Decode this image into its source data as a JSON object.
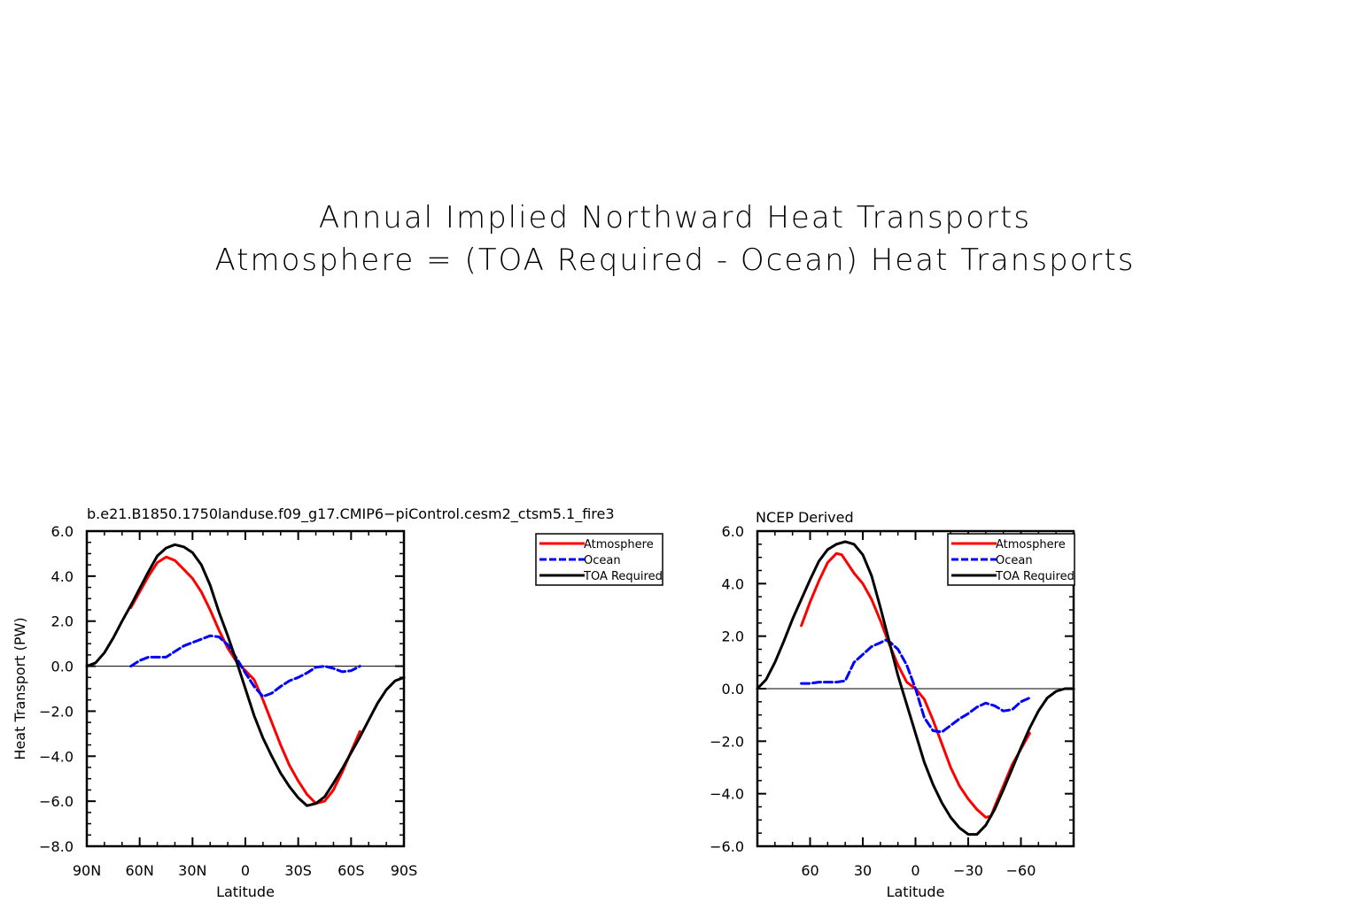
{
  "page": {
    "title_line1": "Annual Implied Northward Heat Transports",
    "title_line2": "Atmosphere = (TOA Required - Ocean) Heat Transports"
  },
  "chart_data": [
    {
      "type": "line",
      "title": "b.e21.B1850.1750landuse.f09_g17.CMIP6-piControl.cesm2_ctsm5.1_fire3",
      "xlabel": "Latitude",
      "ylabel": "Heat Transport (PW)",
      "xlim": [
        90,
        -90
      ],
      "ylim": [
        -8,
        6
      ],
      "x_ticks": [
        90,
        60,
        30,
        0,
        -30,
        -60,
        -90
      ],
      "x_tick_labels": [
        "90N",
        "60N",
        "30N",
        "0",
        "30S",
        "60S",
        "90S"
      ],
      "y_ticks": [
        6,
        4,
        2,
        0,
        -2,
        -4,
        -6,
        -8
      ],
      "y_tick_labels": [
        "6.0",
        "4.0",
        "2.0",
        "0.0",
        "-2.0",
        "-4.0",
        "-6.0",
        "-8.0"
      ],
      "zero_line": true,
      "legend_position": "right-outside-top",
      "series": [
        {
          "name": "Atmosphere",
          "color": "#ff0000",
          "dash": "solid",
          "points": [
            [
              65,
              2.6
            ],
            [
              60,
              3.3
            ],
            [
              55,
              4.0
            ],
            [
              50,
              4.6
            ],
            [
              45,
              4.85
            ],
            [
              40,
              4.7
            ],
            [
              35,
              4.3
            ],
            [
              30,
              3.9
            ],
            [
              25,
              3.3
            ],
            [
              20,
              2.5
            ],
            [
              15,
              1.6
            ],
            [
              10,
              0.8
            ],
            [
              5,
              0.2
            ],
            [
              0,
              -0.2
            ],
            [
              -5,
              -0.6
            ],
            [
              -10,
              -1.5
            ],
            [
              -15,
              -2.5
            ],
            [
              -20,
              -3.5
            ],
            [
              -25,
              -4.4
            ],
            [
              -30,
              -5.1
            ],
            [
              -35,
              -5.7
            ],
            [
              -40,
              -6.1
            ],
            [
              -45,
              -6.0
            ],
            [
              -50,
              -5.5
            ],
            [
              -55,
              -4.7
            ],
            [
              -60,
              -3.8
            ],
            [
              -65,
              -2.9
            ]
          ]
        },
        {
          "name": "Ocean",
          "color": "#0000ff",
          "dash": "dashed",
          "points": [
            [
              65,
              0.0
            ],
            [
              60,
              0.25
            ],
            [
              55,
              0.4
            ],
            [
              50,
              0.4
            ],
            [
              45,
              0.4
            ],
            [
              40,
              0.65
            ],
            [
              35,
              0.9
            ],
            [
              30,
              1.05
            ],
            [
              25,
              1.2
            ],
            [
              20,
              1.35
            ],
            [
              15,
              1.3
            ],
            [
              10,
              0.95
            ],
            [
              5,
              0.35
            ],
            [
              0,
              -0.3
            ],
            [
              -5,
              -0.9
            ],
            [
              -10,
              -1.35
            ],
            [
              -15,
              -1.2
            ],
            [
              -20,
              -0.9
            ],
            [
              -25,
              -0.65
            ],
            [
              -30,
              -0.5
            ],
            [
              -35,
              -0.3
            ],
            [
              -40,
              -0.05
            ],
            [
              -45,
              0.0
            ],
            [
              -50,
              -0.1
            ],
            [
              -55,
              -0.25
            ],
            [
              -60,
              -0.2
            ],
            [
              -65,
              0.0
            ]
          ]
        },
        {
          "name": "TOA Required",
          "color": "#000000",
          "dash": "solid",
          "points": [
            [
              90,
              0.0
            ],
            [
              85,
              0.15
            ],
            [
              80,
              0.6
            ],
            [
              75,
              1.25
            ],
            [
              70,
              2.0
            ],
            [
              65,
              2.7
            ],
            [
              60,
              3.45
            ],
            [
              55,
              4.2
            ],
            [
              50,
              4.9
            ],
            [
              45,
              5.25
            ],
            [
              40,
              5.4
            ],
            [
              35,
              5.3
            ],
            [
              30,
              5.05
            ],
            [
              25,
              4.5
            ],
            [
              20,
              3.6
            ],
            [
              15,
              2.4
            ],
            [
              10,
              1.35
            ],
            [
              5,
              0.2
            ],
            [
              0,
              -1.0
            ],
            [
              -5,
              -2.2
            ],
            [
              -10,
              -3.2
            ],
            [
              -15,
              -4.0
            ],
            [
              -20,
              -4.75
            ],
            [
              -25,
              -5.35
            ],
            [
              -30,
              -5.85
            ],
            [
              -35,
              -6.2
            ],
            [
              -40,
              -6.1
            ],
            [
              -45,
              -5.8
            ],
            [
              -50,
              -5.2
            ],
            [
              -55,
              -4.55
            ],
            [
              -60,
              -3.85
            ],
            [
              -65,
              -3.15
            ],
            [
              -70,
              -2.4
            ],
            [
              -75,
              -1.65
            ],
            [
              -80,
              -1.05
            ],
            [
              -85,
              -0.65
            ],
            [
              -90,
              -0.5
            ]
          ]
        }
      ]
    },
    {
      "type": "line",
      "title": "NCEP Derived",
      "xlabel": "Latitude",
      "ylabel": "",
      "xlim": [
        90,
        -90
      ],
      "ylim": [
        -6,
        6
      ],
      "x_ticks": [
        60,
        30,
        0,
        -30,
        -60
      ],
      "x_tick_labels": [
        "60",
        "30",
        "0",
        "-30",
        "-60"
      ],
      "y_ticks": [
        6,
        4,
        2,
        0,
        -2,
        -4,
        -6
      ],
      "y_tick_labels": [
        "6.0",
        "4.0",
        "2.0",
        "0.0",
        "-2.0",
        "-4.0",
        "-6.0"
      ],
      "zero_line": true,
      "legend_position": "top-right-inside",
      "series": [
        {
          "name": "Atmosphere",
          "color": "#ff0000",
          "dash": "solid",
          "points": [
            [
              65,
              2.4
            ],
            [
              60,
              3.3
            ],
            [
              55,
              4.1
            ],
            [
              50,
              4.8
            ],
            [
              45,
              5.15
            ],
            [
              42,
              5.1
            ],
            [
              40,
              4.9
            ],
            [
              35,
              4.4
            ],
            [
              30,
              4.0
            ],
            [
              25,
              3.4
            ],
            [
              20,
              2.6
            ],
            [
              15,
              1.7
            ],
            [
              10,
              0.9
            ],
            [
              5,
              0.25
            ],
            [
              0,
              0.0
            ],
            [
              -5,
              -0.4
            ],
            [
              -10,
              -1.2
            ],
            [
              -15,
              -2.1
            ],
            [
              -20,
              -3.0
            ],
            [
              -25,
              -3.7
            ],
            [
              -30,
              -4.2
            ],
            [
              -35,
              -4.6
            ],
            [
              -40,
              -4.9
            ],
            [
              -43,
              -4.85
            ],
            [
              -45,
              -4.5
            ],
            [
              -50,
              -3.7
            ],
            [
              -55,
              -2.9
            ],
            [
              -60,
              -2.3
            ],
            [
              -65,
              -1.7
            ]
          ]
        },
        {
          "name": "Ocean",
          "color": "#0000ff",
          "dash": "dashed",
          "points": [
            [
              65,
              0.2
            ],
            [
              60,
              0.2
            ],
            [
              55,
              0.25
            ],
            [
              50,
              0.25
            ],
            [
              45,
              0.25
            ],
            [
              40,
              0.3
            ],
            [
              35,
              1.0
            ],
            [
              30,
              1.3
            ],
            [
              25,
              1.6
            ],
            [
              20,
              1.75
            ],
            [
              17,
              1.85
            ],
            [
              15,
              1.8
            ],
            [
              10,
              1.5
            ],
            [
              5,
              0.9
            ],
            [
              0,
              0.0
            ],
            [
              -5,
              -1.1
            ],
            [
              -10,
              -1.6
            ],
            [
              -15,
              -1.65
            ],
            [
              -20,
              -1.4
            ],
            [
              -25,
              -1.15
            ],
            [
              -30,
              -0.95
            ],
            [
              -35,
              -0.7
            ],
            [
              -40,
              -0.55
            ],
            [
              -45,
              -0.65
            ],
            [
              -50,
              -0.85
            ],
            [
              -55,
              -0.8
            ],
            [
              -60,
              -0.5
            ],
            [
              -65,
              -0.35
            ]
          ]
        },
        {
          "name": "TOA Required",
          "color": "#000000",
          "dash": "solid",
          "points": [
            [
              90,
              0.0
            ],
            [
              85,
              0.35
            ],
            [
              80,
              1.0
            ],
            [
              75,
              1.8
            ],
            [
              70,
              2.65
            ],
            [
              65,
              3.4
            ],
            [
              60,
              4.15
            ],
            [
              55,
              4.85
            ],
            [
              50,
              5.3
            ],
            [
              45,
              5.5
            ],
            [
              40,
              5.6
            ],
            [
              35,
              5.5
            ],
            [
              30,
              5.1
            ],
            [
              25,
              4.3
            ],
            [
              20,
              3.1
            ],
            [
              15,
              1.8
            ],
            [
              10,
              0.5
            ],
            [
              5,
              -0.6
            ],
            [
              0,
              -1.7
            ],
            [
              -5,
              -2.8
            ],
            [
              -10,
              -3.65
            ],
            [
              -15,
              -4.35
            ],
            [
              -20,
              -4.9
            ],
            [
              -25,
              -5.3
            ],
            [
              -30,
              -5.55
            ],
            [
              -35,
              -5.55
            ],
            [
              -40,
              -5.2
            ],
            [
              -45,
              -4.6
            ],
            [
              -50,
              -3.85
            ],
            [
              -55,
              -3.05
            ],
            [
              -60,
              -2.25
            ],
            [
              -65,
              -1.5
            ],
            [
              -70,
              -0.85
            ],
            [
              -75,
              -0.35
            ],
            [
              -80,
              -0.1
            ],
            [
              -85,
              0.0
            ],
            [
              -90,
              0.0
            ]
          ]
        }
      ]
    }
  ]
}
